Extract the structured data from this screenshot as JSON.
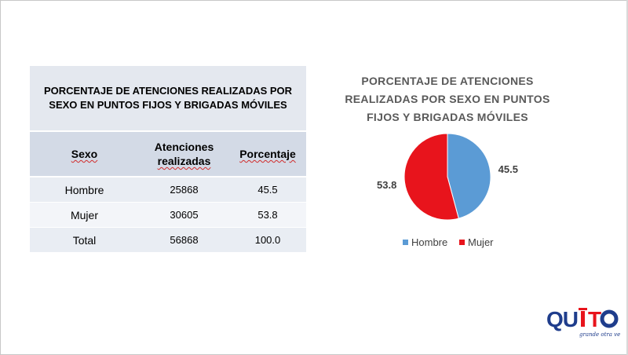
{
  "table": {
    "title": "PORCENTAJE DE ATENCIONES REALIZADAS POR SEXO EN PUNTOS FIJOS Y BRIGADAS MÓVILES",
    "headers": {
      "sexo": "Sexo",
      "atenciones_1": "Atenciones",
      "atenciones_2": "realizadas",
      "porcentaje": "Porcentaje"
    },
    "rows": [
      {
        "sexo": "Hombre",
        "atenciones": "25868",
        "porcentaje": "45.5"
      },
      {
        "sexo": "Mujer",
        "atenciones": "30605",
        "porcentaje": "53.8"
      },
      {
        "sexo": "Total",
        "atenciones": "56868",
        "porcentaje": "100.0"
      }
    ]
  },
  "chart_data": {
    "type": "pie",
    "title_lines": [
      "PORCENTAJE DE ATENCIONES",
      "REALIZADAS POR SEXO EN PUNTOS",
      "FIJOS Y BRIGADAS MÓVILES"
    ],
    "categories": [
      "Hombre",
      "Mujer"
    ],
    "values": [
      45.5,
      53.8
    ],
    "value_labels": [
      "45.5",
      "53.8"
    ],
    "colors": [
      "#5b9bd5",
      "#e8141c"
    ],
    "legend_placement": "bottom"
  },
  "logo": {
    "text": "QUITO",
    "tagline": "grande otra vez",
    "colors": [
      "#1f3d8c",
      "#e8141c"
    ]
  }
}
